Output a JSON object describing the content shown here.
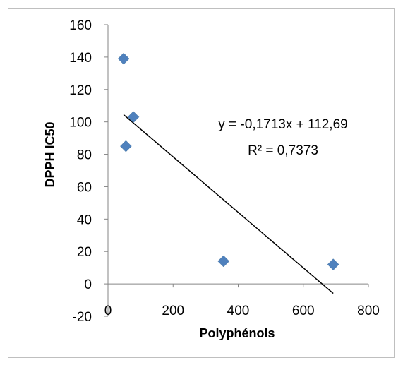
{
  "chart_data": {
    "type": "scatter",
    "xlabel": "Polyphénols",
    "ylabel": "DPPH IC50",
    "xlim": [
      0,
      800
    ],
    "ylim": [
      -20,
      160
    ],
    "x_ticks": [
      "0",
      "200",
      "400",
      "600",
      "800"
    ],
    "y_ticks": [
      "-20",
      "0",
      "20",
      "40",
      "60",
      "80",
      "100",
      "120",
      "140",
      "160"
    ],
    "grid": false,
    "legend": "none",
    "series": [
      {
        "points": [
          {
            "x": 48,
            "y": 139
          },
          {
            "x": 78,
            "y": 103
          },
          {
            "x": 55,
            "y": 85
          },
          {
            "x": 355,
            "y": 14
          },
          {
            "x": 692,
            "y": 12
          }
        ],
        "color": "#4f81bd",
        "marker": "diamond"
      }
    ],
    "trendline": {
      "slope": -0.1713,
      "intercept": 112.69,
      "x_range": [
        48,
        692
      ],
      "color": "#000000"
    },
    "annotations": {
      "equation": "y = -0,1713x + 112,69",
      "r_squared": "R² = 0,7373"
    }
  }
}
